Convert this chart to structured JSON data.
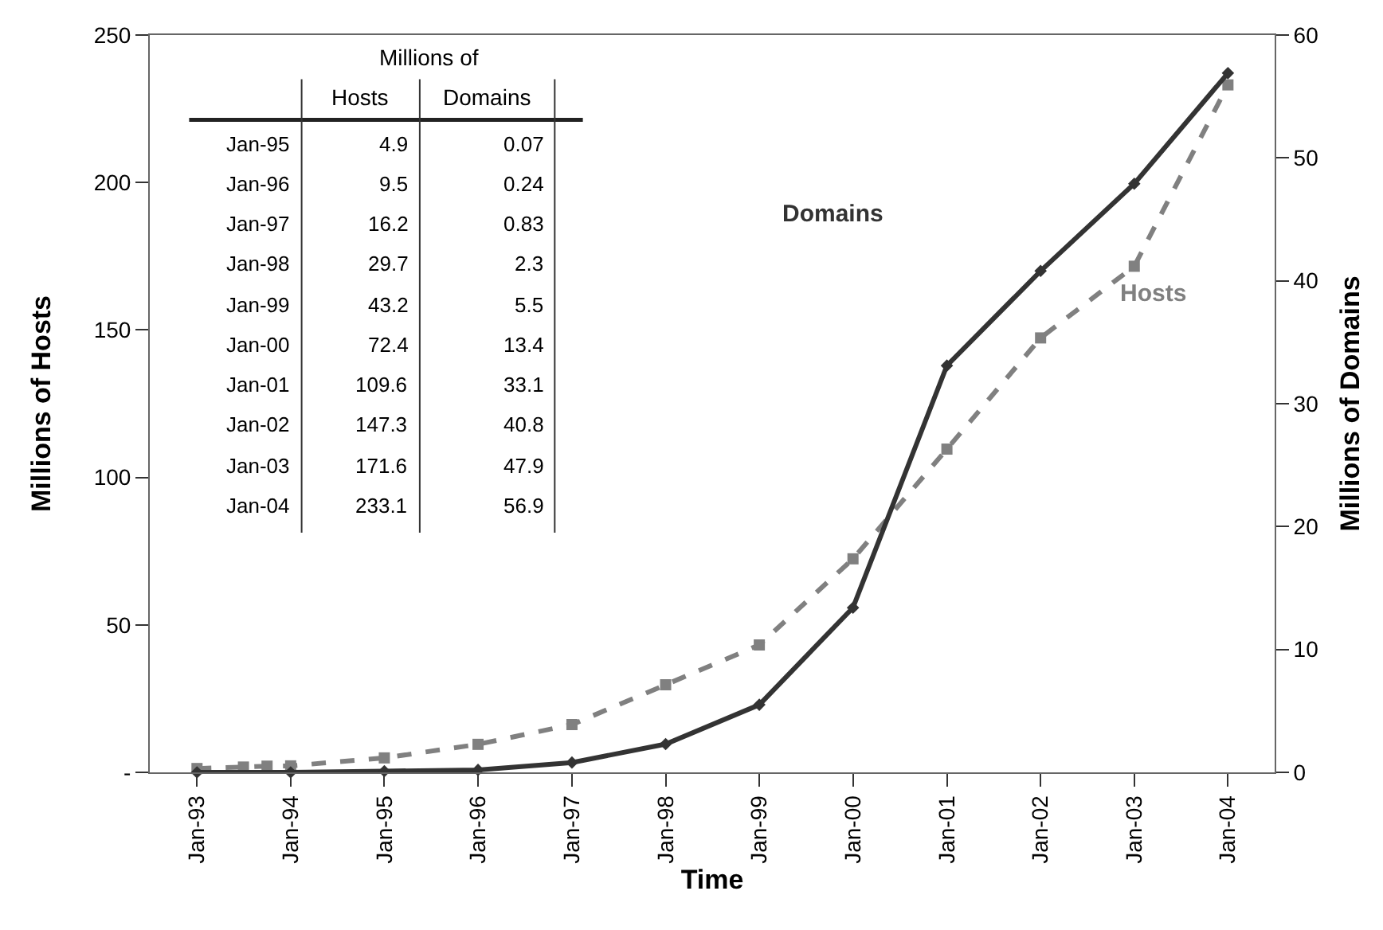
{
  "chart_data": {
    "type": "line",
    "xlabel": "Time",
    "ylabel": "Millions of Hosts",
    "y2label": "Millions of Domains",
    "x": [
      "1993-01",
      "1994-01",
      "1995-01",
      "1996-01",
      "1997-01",
      "1998-01",
      "1999-01",
      "2000-01",
      "2001-01",
      "2002-01",
      "2003-01",
      "2004-01"
    ],
    "series": [
      {
        "name": "Hosts",
        "color": "#808080",
        "axis": "y",
        "marker": "square",
        "line_style": "dashed",
        "x": [
          "1993-01",
          "1993-07",
          "1993-10",
          "1994-01",
          "1995-01",
          "1996-01",
          "1997-01",
          "1998-01",
          "1999-01",
          "2000-01",
          "2001-01",
          "2002-01",
          "2003-01",
          "2004-01"
        ],
        "values": [
          1.3,
          1.8,
          2.1,
          2.2,
          4.9,
          9.5,
          16.2,
          29.7,
          43.2,
          72.4,
          109.6,
          147.3,
          171.6,
          233.1
        ]
      },
      {
        "name": "Domains",
        "color": "#333333",
        "axis": "y2",
        "marker": "diamond",
        "line_style": "solid",
        "values": [
          0,
          0,
          0.1,
          0.2,
          0.8,
          2.3,
          5.5,
          13.4,
          33.1,
          40.8,
          47.9,
          56.9
        ]
      }
    ],
    "annotations": [
      "Millions of",
      "Hosts",
      "Domains",
      "Jan-95",
      "4.9",
      "0.07",
      "Jan-96",
      "9.5",
      "0.24",
      "Jan-97",
      "16.2",
      "0.83",
      "Jan-98",
      "29.7",
      "2.3",
      "Jan-99",
      "43.2",
      "5.5",
      "Jan-00",
      "72.4",
      "13.4",
      "Jan-01",
      "109.6",
      "33.1",
      "Jan-02",
      "147.3",
      "40.8",
      "Jan-03",
      "171.6",
      "47.9",
      "Jan-04",
      "233.1",
      "56.9"
    ],
    "xlim": [
      "1992-07-01",
      "2004-07-01"
    ],
    "xticks": [
      {
        "value": "1993-01",
        "label": "Jan-93"
      },
      {
        "value": "1994-01",
        "label": "Jan-94"
      },
      {
        "value": "1995-01",
        "label": "Jan-95"
      },
      {
        "value": "1996-01",
        "label": "Jan-96"
      },
      {
        "value": "1997-01",
        "label": "Jan-97"
      },
      {
        "value": "1998-01",
        "label": "Jan-98"
      },
      {
        "value": "1999-01",
        "label": "Jan-99"
      },
      {
        "value": "2000-01",
        "label": "Jan-00"
      },
      {
        "value": "2001-01",
        "label": "Jan-01"
      },
      {
        "value": "2002-01",
        "label": "Jan-02"
      },
      {
        "value": "2003-01",
        "label": "Jan-03"
      },
      {
        "value": "2004-01",
        "label": "Jan-04"
      }
    ],
    "ylim": [
      0,
      250
    ],
    "yticks": [
      {
        "value": 0,
        "label": "-"
      },
      50,
      100,
      150,
      200,
      250
    ],
    "y2lim": [
      0,
      60
    ],
    "y2ticks": [
      0,
      10,
      20,
      30,
      40,
      50,
      60
    ],
    "legend": false
  }
}
